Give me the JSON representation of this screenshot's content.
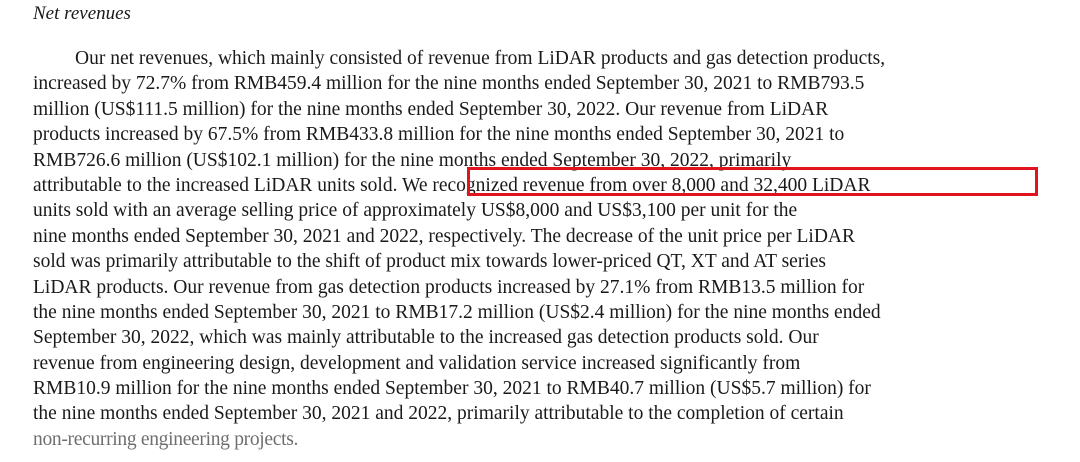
{
  "heading": "Net revenues",
  "lines": [
    "Our net revenues, which mainly consisted of revenue from LiDAR products and gas detection products,",
    "increased by 72.7% from RMB459.4 million for the nine months ended September 30, 2021 to RMB793.5",
    "million (US$111.5 million) for the nine months ended September 30, 2022. Our revenue from LiDAR",
    "products increased by 67.5% from RMB433.8 million for the nine months ended September 30, 2021 to",
    "RMB726.6 million (US$102.1 million) for the nine months ended September 30, 2022, primarily",
    "attributable to the increased LiDAR units sold. ",
    "We recognized revenue from over 8,000 and 32,400 LiDAR",
    "units sold with an average selling price of approximately US$8,000 and US$3,100 per unit for the",
    "nine months ended September 30, 2021 and 2022, respectively. The decrease of the unit price per LiDAR",
    "sold was primarily attributable to the shift of product mix towards lower-priced QT, XT and AT series",
    "LiDAR products. Our revenue from gas detection products increased by 27.1% from RMB13.5 million for",
    "the nine months ended September 30, 2021 to RMB17.2 million (US$2.4 million) for the nine months ended",
    "September 30, 2022, which was mainly attributable to the increased gas detection products sold. Our",
    "revenue from engineering design, development and validation service increased significantly from",
    "RMB10.9 million for the nine months ended September 30, 2021 to RMB40.7 million (US$5.7 million) for",
    "the nine months ended September 30, 2021 and 2022, primarily attributable to the completion of certain",
    "non-recurring engineering projects."
  ],
  "highlight_color": "#e0141c"
}
